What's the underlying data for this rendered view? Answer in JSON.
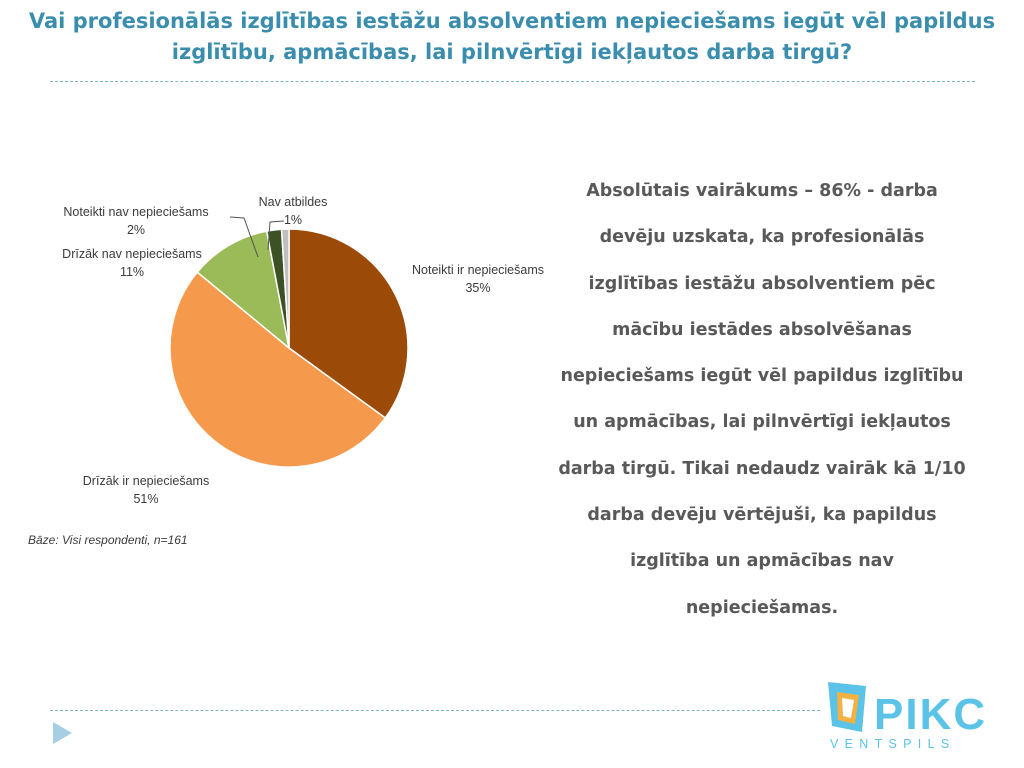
{
  "slide": {
    "title": "Vai profesionālās izglītības iestāžu absolventiem nepieciešams iegūt vēl papildus izglītību, apmācības, lai pilnvērtīgi iekļautos darba tirgū?",
    "summary": "Absolūtais vairākums – 86% - darba devēju uzskata, ka profesionālās izglītības iestāžu absolventiem pēc mācību iestādes absolvēšanas nepieciešams iegūt vēl papildus izglītību un apmācības, lai pilnvērtīgi iekļautos darba tirgū. Tikai nedaudz vairāk kā 1/10 darba devēju vērtējuši, ka papildus izglītība un apmācības nav nepieciešamas.",
    "base_note": "Bāze: Visi respondenti, n=161"
  },
  "logo": {
    "text": "PIKC",
    "subtext": "VENTSPILS",
    "color": "#5bc3e8",
    "accent": "#f5b042"
  },
  "colors": {
    "title": "#3a8dac",
    "summary": "#595959",
    "rule": "#7fb3cc"
  },
  "chart_data": {
    "type": "pie",
    "title": "",
    "start_angle_deg": 0,
    "direction": "clockwise",
    "slices": [
      {
        "label": "Noteikti ir nepieciešams",
        "value": 35,
        "pct_label": "35%",
        "color": "#9c4a08"
      },
      {
        "label": "Drīzāk ir nepieciešams",
        "value": 51,
        "pct_label": "51%",
        "color": "#f59a4d"
      },
      {
        "label": "Drīzāk nav nepieciešams",
        "value": 11,
        "pct_label": "11%",
        "color": "#9bbb59"
      },
      {
        "label": "Noteikti nav nepieciešams",
        "value": 2,
        "pct_label": "2%",
        "color": "#3c5124"
      },
      {
        "label": "Nav atbildes",
        "value": 1,
        "pct_label": "1%",
        "color": "#bfbfbf"
      }
    ]
  }
}
